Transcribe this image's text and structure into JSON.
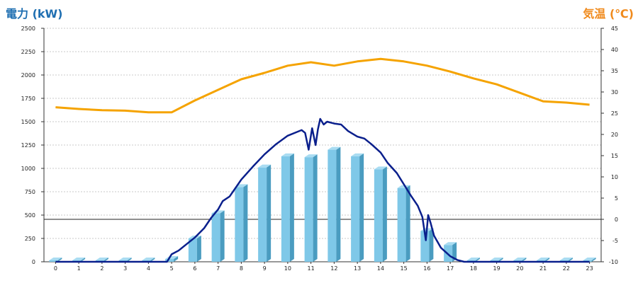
{
  "chart_data": {
    "type": "bar+line",
    "ylabel_left": "電力 (kW)",
    "ylabel_right": "気温 (℃)",
    "categories": [
      "0",
      "1",
      "2",
      "3",
      "4",
      "5",
      "6",
      "7",
      "8",
      "9",
      "10",
      "11",
      "12",
      "13",
      "14",
      "15",
      "16",
      "17",
      "18",
      "19",
      "20",
      "21",
      "22",
      "23"
    ],
    "y_left_ticks": [
      "0",
      "250",
      "500",
      "750",
      "1000",
      "1250",
      "1500",
      "1750",
      "2000",
      "2250",
      "2500"
    ],
    "y_right_ticks": [
      "-10",
      "-5",
      "0",
      "5",
      "10",
      "15",
      "20",
      "25",
      "30",
      "35",
      "40",
      "45"
    ],
    "ylim_left": [
      0,
      2500
    ],
    "ylim_right": [
      -10,
      45
    ],
    "grid": true,
    "colors": {
      "bar_front": "#7fc8e8",
      "bar_side": "#4a9cc0",
      "bar_top": "#a9dcf2",
      "power_line": "#0a1f8c",
      "temp_line": "#f5a300",
      "left_title": "#1f6fb2",
      "right_title": "#f08a1c"
    },
    "series": [
      {
        "type": "bar",
        "axis": "left",
        "values": [
          0,
          0,
          0,
          0,
          0,
          30,
          250,
          520,
          800,
          1010,
          1130,
          1120,
          1200,
          1130,
          990,
          790,
          330,
          180,
          10,
          0,
          0,
          0,
          0,
          0
        ]
      },
      {
        "type": "line",
        "axis": "left",
        "x": [
          0,
          1,
          2,
          3,
          4,
          4.8,
          5,
          5.3,
          5.6,
          6,
          6.4,
          6.7,
          7,
          7.2,
          7.5,
          8,
          8.5,
          9,
          9.5,
          10,
          10.4,
          10.6,
          10.75,
          10.9,
          11.05,
          11.2,
          11.3,
          11.4,
          11.55,
          11.7,
          12,
          12.3,
          12.6,
          13,
          13.3,
          13.6,
          14,
          14.3,
          14.7,
          15,
          15.3,
          15.6,
          15.8,
          15.95,
          16.05,
          16.15,
          16.3,
          16.6,
          17,
          17.3,
          17.6,
          18,
          19,
          20,
          21,
          22,
          23
        ],
        "values": [
          0,
          0,
          0,
          0,
          0,
          0,
          80,
          120,
          180,
          260,
          360,
          470,
          560,
          650,
          700,
          880,
          1020,
          1150,
          1260,
          1350,
          1390,
          1410,
          1380,
          1200,
          1430,
          1250,
          1420,
          1530,
          1470,
          1500,
          1480,
          1470,
          1400,
          1340,
          1320,
          1260,
          1170,
          1060,
          950,
          830,
          710,
          600,
          480,
          230,
          500,
          420,
          280,
          150,
          60,
          20,
          0,
          0,
          0,
          0,
          0,
          0,
          0
        ]
      },
      {
        "type": "line",
        "axis": "right",
        "x": [
          0,
          1,
          2,
          3,
          4,
          5,
          6,
          7,
          8,
          9,
          10,
          11,
          12,
          13,
          14,
          15,
          16,
          17,
          18,
          19,
          20,
          21,
          22,
          23
        ],
        "values": [
          26.4,
          26,
          25.7,
          25.6,
          25.2,
          25.2,
          28,
          30.5,
          33,
          34.5,
          36.2,
          37,
          36.2,
          37.2,
          37.8,
          37.2,
          36.2,
          34.8,
          33.2,
          31.8,
          29.8,
          27.8,
          27.5,
          27
        ]
      }
    ]
  }
}
